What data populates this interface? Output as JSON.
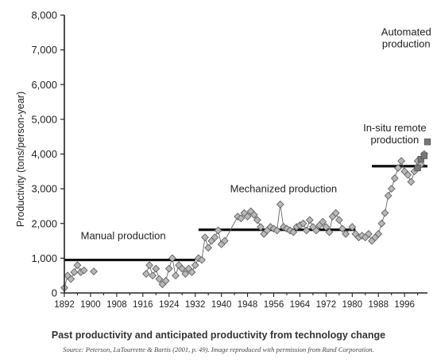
{
  "chart_data": {
    "type": "scatter",
    "ylabel": "Productivity (tons/person-year)",
    "xlim": [
      1892,
      2003
    ],
    "ylim": [
      0,
      8000
    ],
    "xticks": [
      1892,
      1900,
      1908,
      1916,
      1924,
      1932,
      1940,
      1948,
      1956,
      1964,
      1972,
      1980,
      1988,
      1996
    ],
    "yticks": [
      0,
      1000,
      2000,
      3000,
      4000,
      5000,
      6000,
      7000,
      8000
    ],
    "ytick_labels": [
      "0",
      "1,000",
      "2,000",
      "3,000",
      "4,000",
      "5,000",
      "6,000",
      "7,000",
      "8,000"
    ],
    "grid": false,
    "series": [
      {
        "type": "line+diamond",
        "color": "#999999",
        "segments": [
          [
            [
              1892,
              150
            ],
            [
              1893,
              500
            ],
            [
              1894,
              400
            ],
            [
              1895,
              600
            ],
            [
              1896,
              800
            ],
            [
              1897,
              600
            ],
            [
              1898,
              650
            ]
          ],
          [
            [
              1901,
              620
            ]
          ],
          [
            [
              1917,
              550
            ],
            [
              1918,
              800
            ],
            [
              1919,
              500
            ],
            [
              1920,
              700
            ],
            [
              1921,
              400
            ],
            [
              1922,
              250
            ],
            [
              1923,
              350
            ],
            [
              1924,
              700
            ],
            [
              1925,
              1000
            ],
            [
              1926,
              500
            ],
            [
              1927,
              800
            ],
            [
              1928,
              700
            ],
            [
              1929,
              550
            ],
            [
              1930,
              700
            ],
            [
              1931,
              600
            ],
            [
              1932,
              800
            ],
            [
              1933,
              1000
            ],
            [
              1934,
              950
            ],
            [
              1935,
              1600
            ],
            [
              1936,
              1300
            ],
            [
              1937,
              1500
            ],
            [
              1938,
              1600
            ],
            [
              1939,
              1800
            ],
            [
              1940,
              1400
            ],
            [
              1941,
              1500
            ],
            [
              1945,
              2200
            ],
            [
              1946,
              2150
            ],
            [
              1947,
              2300
            ],
            [
              1948,
              2200
            ],
            [
              1949,
              2350
            ],
            [
              1950,
              2250
            ],
            [
              1951,
              2100
            ],
            [
              1952,
              1900
            ],
            [
              1953,
              1700
            ],
            [
              1954,
              1800
            ],
            [
              1955,
              1900
            ],
            [
              1956,
              1850
            ],
            [
              1957,
              1800
            ],
            [
              1958,
              2550
            ],
            [
              1959,
              1900
            ],
            [
              1960,
              1850
            ],
            [
              1961,
              1800
            ],
            [
              1962,
              1750
            ],
            [
              1963,
              1900
            ],
            [
              1964,
              1950
            ],
            [
              1965,
              2000
            ],
            [
              1966,
              1800
            ],
            [
              1967,
              2100
            ],
            [
              1968,
              1900
            ],
            [
              1969,
              1800
            ],
            [
              1970,
              1950
            ],
            [
              1971,
              2050
            ],
            [
              1972,
              1900
            ],
            [
              1973,
              1750
            ],
            [
              1974,
              2200
            ],
            [
              1975,
              2300
            ],
            [
              1976,
              2100
            ],
            [
              1977,
              1850
            ],
            [
              1978,
              1700
            ],
            [
              1980,
              1900
            ],
            [
              1981,
              1700
            ],
            [
              1982,
              1600
            ],
            [
              1983,
              1650
            ],
            [
              1984,
              1600
            ],
            [
              1985,
              1700
            ],
            [
              1986,
              1500
            ],
            [
              1987,
              1600
            ],
            [
              1988,
              1700
            ],
            [
              1989,
              2000
            ],
            [
              1990,
              2300
            ],
            [
              1991,
              2800
            ],
            [
              1992,
              3000
            ],
            [
              1993,
              3300
            ],
            [
              1994,
              3600
            ],
            [
              1995,
              3800
            ],
            [
              1996,
              3500
            ],
            [
              1997,
              3400
            ],
            [
              1998,
              3200
            ],
            [
              1999,
              3500
            ],
            [
              2000,
              3800
            ],
            [
              2001,
              3700
            ],
            [
              2002,
              4000
            ]
          ]
        ]
      },
      {
        "type": "square",
        "color": "#777777",
        "points": [
          [
            2000,
            3600
          ],
          [
            2001,
            3850
          ],
          [
            2002,
            3950
          ],
          [
            2003,
            4350
          ]
        ]
      }
    ],
    "levels": [
      {
        "label": "Manual production",
        "from": 1892,
        "to": 1932,
        "value": 950
      },
      {
        "label": "Mechanized production",
        "from": 1933,
        "to": 1981,
        "value": 1820
      },
      {
        "label": "In-situ remote production",
        "from": 1986,
        "to": 2003,
        "value": 3650
      }
    ],
    "annotations": [
      {
        "text": "Automated production"
      }
    ],
    "caption": "Past productivity and anticipated productivity from technology change",
    "source": "Source: Peterson, LaTourrette & Bartis (2001, p. 49). Image reproduced with permission from Rand Corporation."
  }
}
